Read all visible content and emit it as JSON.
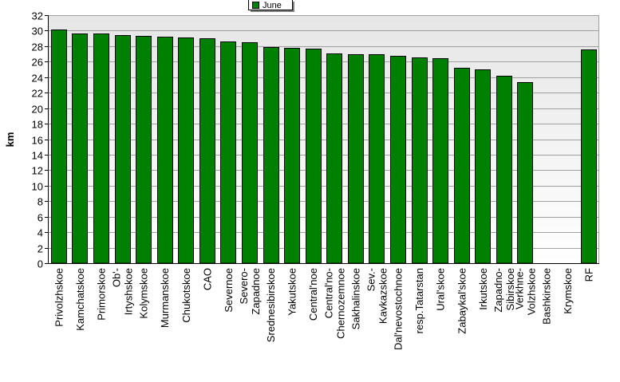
{
  "chart_data": {
    "type": "bar",
    "ylabel": "km",
    "xlabel": "",
    "title": "",
    "ylim": [
      0,
      32
    ],
    "ytick_step": 2,
    "grid": true,
    "legend_position": "top-center",
    "series": [
      {
        "name": "June",
        "color": "#008000",
        "values": [
          30.1,
          29.6,
          29.6,
          29.4,
          29.3,
          29.2,
          29.1,
          29.0,
          28.6,
          28.5,
          27.9,
          27.8,
          27.7,
          27.1,
          27.0,
          27.0,
          26.8,
          26.5,
          26.4,
          25.2,
          25.0,
          24.2,
          23.4,
          0,
          0,
          27.6
        ]
      }
    ],
    "categories": [
      "Privolzhskoe",
      "Kamchatskoe",
      "Primorskoe",
      "Ob'-Irtyshskoe",
      "Kolymskoe",
      "Murmanskoe",
      "Chukotskoe",
      "CAO",
      "Severnoe",
      "Severo-Zapadnoe",
      "Srednesibirskoe",
      "Yakutskoe",
      "Central'noe",
      "Central'no-Chernozemnoe",
      "Sakhalinskoe",
      "Sev.-Kavkazskoe",
      "Dal'nevostochnoe",
      "resp.Tatarstan",
      "Ural'skoe",
      "Zabaykal'skoe",
      "Irkutskoe",
      "Zapadno-Sibirskoe",
      "Verkhne-Volzhskoe",
      "Bashkirskoe",
      "Krymskoe",
      "RF"
    ],
    "category_lines": [
      [
        "Privolzhskoe"
      ],
      [
        "Kamchatskoe"
      ],
      [
        "Primorskoe"
      ],
      [
        "Ob'-",
        "Irtyshskoe"
      ],
      [
        "Kolymskoe"
      ],
      [
        "Murmanskoe"
      ],
      [
        "Chukotskoe"
      ],
      [
        "CAO"
      ],
      [
        "Severnoe"
      ],
      [
        "Severo-",
        "Zapadnoe"
      ],
      [
        "Srednesibirskoe"
      ],
      [
        "Yakutskoe"
      ],
      [
        "Central'noe"
      ],
      [
        "Central'no-",
        "Chernozemnoe"
      ],
      [
        "Sakhalinskoe"
      ],
      [
        "Sev.-",
        "Kavkazskoe"
      ],
      [
        "Dal'nevostochnoe"
      ],
      [
        "resp.Tatarstan"
      ],
      [
        "Ural'skoe"
      ],
      [
        "Zabaykal'skoe"
      ],
      [
        "Irkutskoe"
      ],
      [
        "Zapadno-",
        "Sibirskoe"
      ],
      [
        "Verkhne-",
        "Volzhskoe"
      ],
      [
        "Bashkirskoe"
      ],
      [
        "Krymskoe"
      ],
      [
        "RF"
      ]
    ],
    "colors": {
      "bar_fill": "#008000",
      "bar_stroke": "#000000",
      "plot_background_top": "#e6e6e6",
      "plot_background_bottom": "#ffffff",
      "grid": "#a0a0a0"
    }
  }
}
